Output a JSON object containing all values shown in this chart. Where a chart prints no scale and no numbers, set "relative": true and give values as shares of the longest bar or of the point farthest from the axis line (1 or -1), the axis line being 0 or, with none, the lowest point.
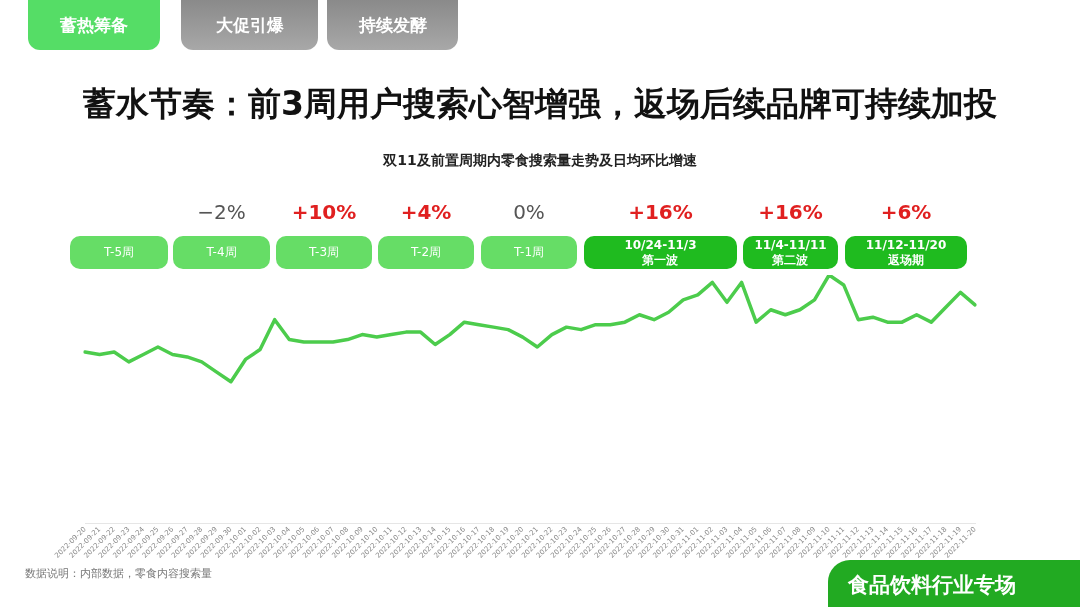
{
  "chart_data": {
    "type": "line",
    "title": "蓄水节奏：前3周用户搜索心智增强，返场后续品牌可持续加投",
    "subtitle": "双11及前置周期内零食搜索量走势及日均环比增速",
    "relative": true,
    "grid": false,
    "legend": false,
    "marker": "none",
    "line_style": "solid",
    "categories": [
      "2022-09-20",
      "2022-09-21",
      "2022-09-22",
      "2022-09-23",
      "2022-09-24",
      "2022-09-25",
      "2022-09-26",
      "2022-09-27",
      "2022-09-28",
      "2022-09-29",
      "2022-09-30",
      "2022-10-01",
      "2022-10-02",
      "2022-10-03",
      "2022-10-04",
      "2022-10-05",
      "2022-10-06",
      "2022-10-07",
      "2022-10-08",
      "2022-10-09",
      "2022-10-10",
      "2022-10-11",
      "2022-10-12",
      "2022-10-13",
      "2022-10-14",
      "2022-10-15",
      "2022-10-16",
      "2022-10-17",
      "2022-10-18",
      "2022-10-19",
      "2022-10-20",
      "2022-10-21",
      "2022-10-22",
      "2022-10-23",
      "2022-10-24",
      "2022-10-25",
      "2022-10-26",
      "2022-10-27",
      "2022-10-28",
      "2022-10-29",
      "2022-10-30",
      "2022-10-31",
      "2022-11-01",
      "2022-11-02",
      "2022-11-03",
      "2022-11-04",
      "2022-11-05",
      "2022-11-06",
      "2022-11-07",
      "2022-11-08",
      "2022-11-09",
      "2022-11-10",
      "2022-11-11",
      "2022-11-12",
      "2022-11-13",
      "2022-11-14",
      "2022-11-15",
      "2022-11-16",
      "2022-11-17",
      "2022-11-18",
      "2022-11-19",
      "2022-11-20"
    ],
    "series": [
      {
        "color": "#4ccc4c",
        "values": [
          0.69,
          0.68,
          0.69,
          0.65,
          0.68,
          0.71,
          0.68,
          0.67,
          0.65,
          0.61,
          0.57,
          0.66,
          0.7,
          0.82,
          0.74,
          0.73,
          0.73,
          0.73,
          0.74,
          0.76,
          0.75,
          0.76,
          0.77,
          0.77,
          0.72,
          0.76,
          0.81,
          0.8,
          0.79,
          0.78,
          0.75,
          0.71,
          0.76,
          0.79,
          0.78,
          0.8,
          0.8,
          0.81,
          0.84,
          0.82,
          0.85,
          0.9,
          0.92,
          0.97,
          0.89,
          0.97,
          0.81,
          0.86,
          0.84,
          0.86,
          0.9,
          1,
          0.96,
          0.82,
          0.83,
          0.81,
          0.81,
          0.84,
          0.81,
          0.87,
          0.93,
          0.88
        ]
      }
    ],
    "annotations": [
      "蓄热筹备",
      "大促引爆",
      "持续发酵",
      "T-5周",
      "T-4周",
      "T-3周",
      "T-2周",
      "T-1周",
      "10/24-11/3\n第一波",
      "11/4-11/11\n第二波",
      "11/12-11/20\n返场期",
      "−2%",
      "+10%",
      "+4%",
      "0%",
      "+16%",
      "+16%",
      "+6%",
      "数据说明：内部数据，零食内容搜索量",
      "食品饮料行业专场"
    ]
  }
}
